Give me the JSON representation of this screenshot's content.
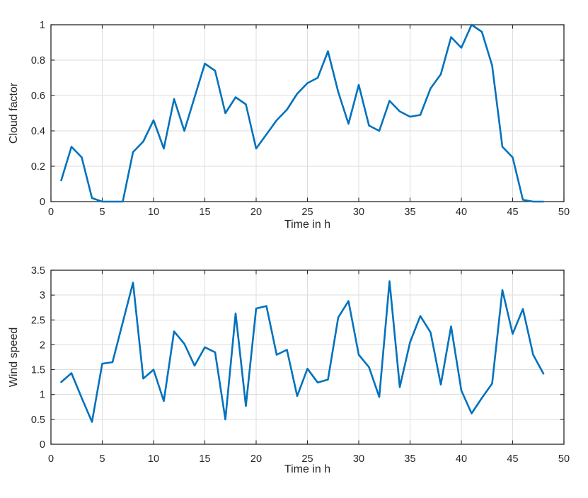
{
  "figure": {
    "background": "#ffffff",
    "axis_color": "#262626",
    "grid_color": "#dedede",
    "line_color": "#0072BD"
  },
  "chart_data": [
    {
      "name": "cloud-factor",
      "type": "line",
      "title": "",
      "xlabel": "Time in h",
      "ylabel": "Cloud factor",
      "xlim": [
        0,
        50
      ],
      "ylim": [
        0,
        1
      ],
      "grid": true,
      "legend": null,
      "xticks": [
        0,
        5,
        10,
        15,
        20,
        25,
        30,
        35,
        40,
        45,
        50
      ],
      "xtick_labels": [
        "0",
        "5",
        "10",
        "15",
        "20",
        "25",
        "30",
        "35",
        "40",
        "45",
        "50"
      ],
      "yticks": [
        0,
        0.2,
        0.4,
        0.6,
        0.8,
        1
      ],
      "ytick_labels": [
        "0",
        "0.2",
        "0.4",
        "0.6",
        "0.8",
        "1"
      ],
      "line_color": "#0072BD",
      "x": [
        1,
        2,
        3,
        4,
        5,
        6,
        7,
        8,
        9,
        10,
        11,
        12,
        13,
        14,
        15,
        16,
        17,
        18,
        19,
        20,
        21,
        22,
        23,
        24,
        25,
        26,
        27,
        28,
        29,
        30,
        31,
        32,
        33,
        34,
        35,
        36,
        37,
        38,
        39,
        40,
        41,
        42,
        43,
        44,
        45,
        46,
        47,
        48
      ],
      "y": [
        0.12,
        0.31,
        0.25,
        0.02,
        0,
        0,
        0,
        0.28,
        0.34,
        0.46,
        0.3,
        0.58,
        0.4,
        0.59,
        0.78,
        0.74,
        0.5,
        0.59,
        0.55,
        0.3,
        0.38,
        0.46,
        0.52,
        0.61,
        0.67,
        0.7,
        0.85,
        0.62,
        0.44,
        0.66,
        0.43,
        0.4,
        0.57,
        0.51,
        0.48,
        0.49,
        0.64,
        0.72,
        0.93,
        0.87,
        1.0,
        0.96,
        0.77,
        0.31,
        0.25,
        0.01,
        0,
        0
      ]
    },
    {
      "name": "wind-speed",
      "type": "line",
      "title": "",
      "xlabel": "Time in h",
      "ylabel": "Wind speed",
      "xlim": [
        0,
        50
      ],
      "ylim": [
        0,
        3.5
      ],
      "grid": true,
      "legend": null,
      "xticks": [
        0,
        5,
        10,
        15,
        20,
        25,
        30,
        35,
        40,
        45,
        50
      ],
      "xtick_labels": [
        "0",
        "5",
        "10",
        "15",
        "20",
        "25",
        "30",
        "35",
        "40",
        "45",
        "50"
      ],
      "yticks": [
        0,
        0.5,
        1,
        1.5,
        2,
        2.5,
        3,
        3.5
      ],
      "ytick_labels": [
        "0",
        "0.5",
        "1",
        "1.5",
        "2",
        "2.5",
        "3",
        "3.5"
      ],
      "line_color": "#0072BD",
      "x": [
        1,
        2,
        3,
        4,
        5,
        6,
        7,
        8,
        9,
        10,
        11,
        12,
        13,
        14,
        15,
        16,
        17,
        18,
        19,
        20,
        21,
        22,
        23,
        24,
        25,
        26,
        27,
        28,
        29,
        30,
        31,
        32,
        33,
        34,
        35,
        36,
        37,
        38,
        39,
        40,
        41,
        42,
        43,
        44,
        45,
        46,
        47,
        48
      ],
      "y": [
        1.25,
        1.43,
        0.93,
        0.45,
        1.62,
        1.65,
        2.45,
        3.25,
        1.32,
        1.5,
        0.87,
        2.27,
        2.02,
        1.58,
        1.95,
        1.85,
        0.5,
        2.63,
        0.77,
        2.73,
        2.78,
        1.8,
        1.9,
        0.97,
        1.52,
        1.24,
        1.3,
        2.55,
        2.88,
        1.8,
        1.55,
        0.95,
        3.28,
        1.15,
        2.05,
        2.58,
        2.25,
        1.2,
        2.37,
        1.08,
        0.62,
        0.93,
        1.22,
        3.1,
        2.22,
        2.72,
        1.8,
        1.42
      ]
    }
  ]
}
